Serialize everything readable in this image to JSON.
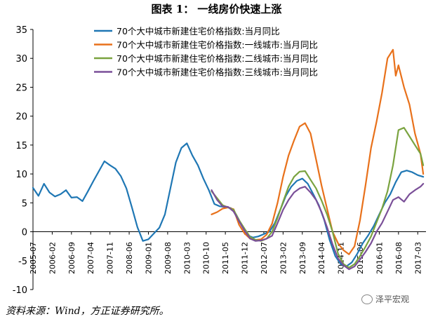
{
  "figure": {
    "title": "图表 1： 一线房价快速上涨",
    "source": "资料来源：Wind，方正证券研究所。",
    "watermark": "泽平宏观",
    "watermark_icon": "wechat-icon"
  },
  "chart_data": {
    "type": "line",
    "title": "",
    "xlabel": "",
    "ylabel": "",
    "ylim": [
      -10,
      35
    ],
    "yticks": [
      -10,
      -5,
      0,
      5,
      10,
      15,
      20,
      25,
      30,
      35
    ],
    "xticks": [
      "2005-07",
      "2006-02",
      "2006-09",
      "2007-04",
      "2007-11",
      "2008-06",
      "2009-01",
      "2009-08",
      "2010-03",
      "2010-10",
      "2011-05",
      "2011-12",
      "2012-07",
      "2013-02",
      "2013-09",
      "2014-04",
      "2014-11",
      "2015-06",
      "2016-01",
      "2016-08",
      "2017-03"
    ],
    "grid": false,
    "legend_position": "top",
    "series": [
      {
        "name": "70个大中城市新建住宅价格指数:当月同比",
        "color": "#1f77b4",
        "x": [
          "2005-07",
          "2005-09",
          "2005-11",
          "2006-01",
          "2006-03",
          "2006-05",
          "2006-07",
          "2006-09",
          "2006-11",
          "2007-01",
          "2007-03",
          "2007-05",
          "2007-07",
          "2007-09",
          "2007-11",
          "2008-01",
          "2008-03",
          "2008-05",
          "2008-07",
          "2008-09",
          "2008-11",
          "2009-01",
          "2009-03",
          "2009-05",
          "2009-07",
          "2009-09",
          "2009-11",
          "2010-01",
          "2010-03",
          "2010-05",
          "2010-07",
          "2010-09",
          "2010-11",
          "2011-01",
          "2011-03",
          "2011-05",
          "2011-07",
          "2011-09",
          "2011-11",
          "2012-01",
          "2012-03",
          "2012-05",
          "2012-07",
          "2012-09",
          "2012-11",
          "2013-01",
          "2013-03",
          "2013-05",
          "2013-07",
          "2013-09",
          "2013-11",
          "2014-01",
          "2014-03",
          "2014-05",
          "2014-07",
          "2014-09",
          "2014-11",
          "2015-01",
          "2015-03",
          "2015-05",
          "2015-07",
          "2015-09",
          "2015-11",
          "2016-01",
          "2016-03",
          "2016-05",
          "2016-07",
          "2016-09",
          "2016-11",
          "2017-01",
          "2017-03",
          "2017-05"
        ],
        "y": [
          7.6,
          6.2,
          8.3,
          6.8,
          6.1,
          6.5,
          7.2,
          5.9,
          6.0,
          5.3,
          7.0,
          8.8,
          10.5,
          12.2,
          11.5,
          10.9,
          9.6,
          7.5,
          4.2,
          0.8,
          -1.6,
          -1.3,
          -0.3,
          0.7,
          3.0,
          7.5,
          12.0,
          14.5,
          15.3,
          13.2,
          11.5,
          9.2,
          7.2,
          4.8,
          4.4,
          4.3,
          4.1,
          2.9,
          1.1,
          -0.6,
          -1.0,
          -0.8,
          -0.4,
          0.0,
          1.5,
          3.8,
          6.2,
          7.8,
          8.8,
          9.2,
          8.3,
          6.5,
          4.6,
          2.0,
          -1.5,
          -4.2,
          -5.6,
          -6.0,
          -5.3,
          -3.8,
          -2.0,
          -0.6,
          1.0,
          3.0,
          5.0,
          6.5,
          8.6,
          10.3,
          10.6,
          10.3,
          9.8,
          9.5
        ]
      },
      {
        "name": "70个大中城市新建住宅价格指数:一线城市:当月同比",
        "color": "#e8711b",
        "x": [
          "2010-12",
          "2011-02",
          "2011-04",
          "2011-06",
          "2011-08",
          "2011-10",
          "2011-12",
          "2012-02",
          "2012-04",
          "2012-06",
          "2012-08",
          "2012-10",
          "2012-12",
          "2013-02",
          "2013-04",
          "2013-06",
          "2013-08",
          "2013-10",
          "2013-12",
          "2014-02",
          "2014-04",
          "2014-06",
          "2014-08",
          "2014-10",
          "2014-12",
          "2015-02",
          "2015-04",
          "2015-06",
          "2015-08",
          "2015-10",
          "2015-12",
          "2016-02",
          "2016-04",
          "2016-06",
          "2016-07",
          "2016-08",
          "2016-10",
          "2016-12",
          "2017-02",
          "2017-04",
          "2017-05"
        ],
        "y": [
          3.0,
          3.4,
          4.0,
          4.2,
          3.9,
          1.2,
          -0.3,
          -1.2,
          -1.4,
          -1.3,
          -0.5,
          1.4,
          5.0,
          9.5,
          13.2,
          15.8,
          18.2,
          18.8,
          17.0,
          12.5,
          8.0,
          4.0,
          0.0,
          -2.0,
          -3.2,
          -3.9,
          -2.5,
          2.0,
          8.0,
          14.5,
          19.0,
          24.0,
          30.0,
          31.5,
          27.0,
          28.8,
          25.0,
          22.0,
          17.0,
          13.5,
          10.0
        ]
      },
      {
        "name": "70个大中城市新建住宅价格指数:二线城市:当月同比",
        "color": "#7aa33f",
        "x": [
          "2010-12",
          "2011-02",
          "2011-04",
          "2011-06",
          "2011-08",
          "2011-10",
          "2011-12",
          "2012-02",
          "2012-04",
          "2012-06",
          "2012-08",
          "2012-10",
          "2012-12",
          "2013-02",
          "2013-04",
          "2013-06",
          "2013-08",
          "2013-10",
          "2013-12",
          "2014-02",
          "2014-04",
          "2014-06",
          "2014-08",
          "2014-10",
          "2014-12",
          "2015-02",
          "2015-04",
          "2015-06",
          "2015-08",
          "2015-10",
          "2015-12",
          "2016-02",
          "2016-04",
          "2016-06",
          "2016-08",
          "2016-10",
          "2016-12",
          "2017-02",
          "2017-04",
          "2017-05"
        ],
        "y": [
          7.0,
          5.8,
          4.6,
          4.2,
          3.8,
          2.0,
          0.5,
          -0.9,
          -1.4,
          -1.6,
          -1.2,
          0.0,
          2.4,
          5.2,
          7.8,
          9.5,
          10.4,
          10.5,
          9.0,
          7.5,
          5.4,
          3.0,
          0.0,
          -3.8,
          -5.6,
          -6.2,
          -5.6,
          -4.2,
          -2.6,
          -0.8,
          1.6,
          4.0,
          7.0,
          11.5,
          17.6,
          18.0,
          16.5,
          15.0,
          13.5,
          11.5
        ]
      },
      {
        "name": "70个大中城市新建住宅价格指数:三线城市:当月同比",
        "color": "#7a4f98",
        "x": [
          "2010-12",
          "2011-02",
          "2011-04",
          "2011-06",
          "2011-08",
          "2011-10",
          "2011-12",
          "2012-02",
          "2012-04",
          "2012-06",
          "2012-08",
          "2012-10",
          "2012-12",
          "2013-02",
          "2013-04",
          "2013-06",
          "2013-08",
          "2013-10",
          "2013-12",
          "2014-02",
          "2014-04",
          "2014-06",
          "2014-08",
          "2014-10",
          "2014-12",
          "2015-02",
          "2015-04",
          "2015-06",
          "2015-08",
          "2015-10",
          "2015-12",
          "2016-02",
          "2016-04",
          "2016-06",
          "2016-08",
          "2016-10",
          "2016-12",
          "2017-02",
          "2017-04",
          "2017-05"
        ],
        "y": [
          7.2,
          5.5,
          4.4,
          4.3,
          3.5,
          1.8,
          0.2,
          -1.2,
          -1.6,
          -1.5,
          -1.2,
          -0.7,
          1.5,
          3.8,
          5.5,
          6.8,
          7.5,
          7.8,
          6.8,
          5.5,
          3.4,
          0.8,
          -2.2,
          -4.6,
          -5.8,
          -6.5,
          -6.0,
          -4.8,
          -3.5,
          -2.0,
          0.0,
          1.5,
          3.5,
          5.5,
          6.0,
          5.2,
          6.5,
          7.2,
          7.8,
          8.3
        ]
      }
    ]
  }
}
